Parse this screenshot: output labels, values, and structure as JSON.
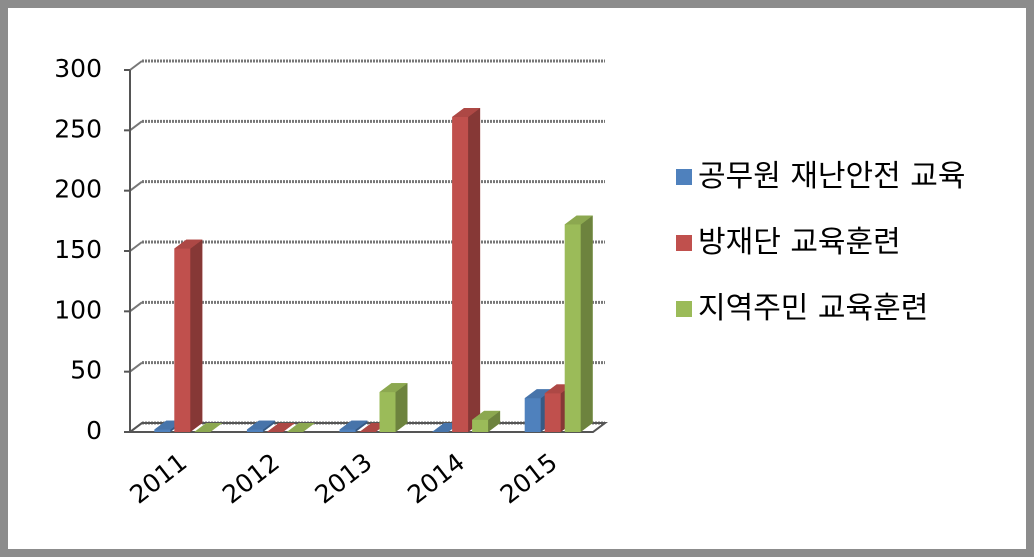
{
  "chart_data": {
    "type": "bar3d",
    "categories": [
      "2011",
      "2012",
      "2013",
      "2014",
      "2015"
    ],
    "series": [
      {
        "name": "공무원 재난안전 교육",
        "color": "#4f81bd",
        "values": [
          2,
          2,
          2,
          0,
          28
        ]
      },
      {
        "name": "방재단 교육훈련",
        "color": "#c0504d",
        "values": [
          152,
          0,
          0,
          261,
          32
        ]
      },
      {
        "name": "지역주민 교육훈련",
        "color": "#9bbb59",
        "values": [
          0,
          0,
          33,
          10,
          172
        ]
      }
    ],
    "ylim": [
      0,
      300
    ],
    "yticks": [
      0,
      50,
      100,
      150,
      200,
      250,
      300
    ],
    "grid": true,
    "legend": "right"
  }
}
